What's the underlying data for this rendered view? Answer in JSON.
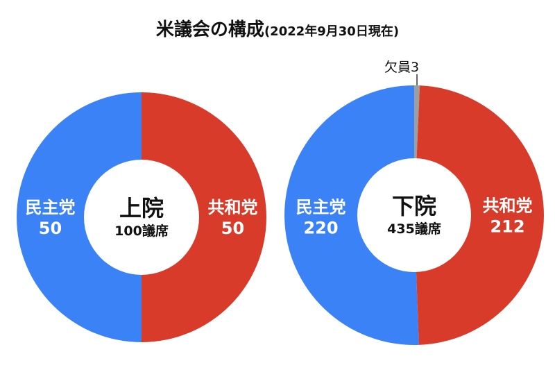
{
  "title": "米議会の構成",
  "subtitle": "(2022年9月30日現在)",
  "colors": {
    "democrat": "#3b82f6",
    "republican": "#d93b2b",
    "vacant": "#9e9e9e"
  },
  "chart_data": [
    {
      "type": "pie",
      "center_title": "上院",
      "center_sub": "100議席",
      "slices": [
        {
          "name": "共和党",
          "value": 50,
          "value_label": "50",
          "color": "#d93b2b"
        },
        {
          "name": "民主党",
          "value": 50,
          "value_label": "50",
          "color": "#3b82f6"
        }
      ]
    },
    {
      "type": "pie",
      "center_title": "下院",
      "center_sub": "435議席",
      "slices": [
        {
          "name": "欠員",
          "value": 3,
          "value_label": "3",
          "color": "#9e9e9e",
          "callout": "欠員3"
        },
        {
          "name": "共和党",
          "value": 212,
          "value_label": "212",
          "color": "#d93b2b"
        },
        {
          "name": "民主党",
          "value": 220,
          "value_label": "220",
          "color": "#3b82f6"
        }
      ]
    }
  ]
}
